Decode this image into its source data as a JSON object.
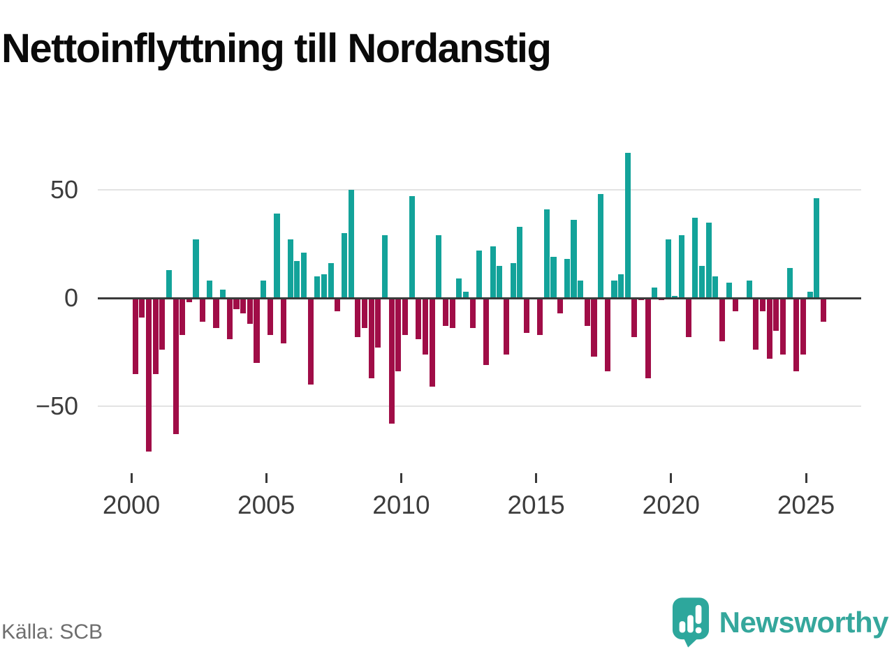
{
  "title": "Nettoinflyttning till Nordanstig",
  "source": "Källa: SCB",
  "brand": {
    "name": "Newsworthy",
    "color": "#35a79c"
  },
  "colors": {
    "positive": "#13a39a",
    "negative": "#a00d47",
    "axis": "#3a3a3a",
    "gridline": "#e3e3e3",
    "tick_text": "#3c3c3c",
    "source_text": "#6e6e6e",
    "title_text": "#0a0a0a",
    "background": "#ffffff"
  },
  "chart_data": {
    "type": "bar",
    "title": "Nettoinflyttning till Nordanstig",
    "frequency": "quarterly",
    "xlabel": "",
    "ylabel": "",
    "legend": "none",
    "grid": "horizontal gridlines at 50 and -50, dark zero axis",
    "ylim": [
      -75,
      72
    ],
    "y_ticks": [
      {
        "value": 50,
        "label": "50"
      },
      {
        "value": 0,
        "label": "0"
      },
      {
        "value": -50,
        "label": "−50"
      }
    ],
    "x_tick_years": [
      2000,
      2005,
      2010,
      2015,
      2020,
      2025
    ],
    "series_by_year": [
      {
        "year": 2000,
        "values": [
          -35,
          -9,
          -71,
          -35
        ]
      },
      {
        "year": 2001,
        "values": [
          -24,
          13,
          -63,
          -17
        ]
      },
      {
        "year": 2002,
        "values": [
          -2,
          27,
          -11,
          8
        ]
      },
      {
        "year": 2003,
        "values": [
          -14,
          4,
          -19,
          -5
        ]
      },
      {
        "year": 2004,
        "values": [
          -7,
          -12,
          -30,
          8
        ]
      },
      {
        "year": 2005,
        "values": [
          -17,
          39,
          -21,
          27
        ]
      },
      {
        "year": 2006,
        "values": [
          17,
          21,
          -40,
          10
        ]
      },
      {
        "year": 2007,
        "values": [
          11,
          16,
          -6,
          30
        ]
      },
      {
        "year": 2008,
        "values": [
          50,
          -18,
          -14,
          -37
        ]
      },
      {
        "year": 2009,
        "values": [
          -23,
          29,
          -58,
          -34
        ]
      },
      {
        "year": 2010,
        "values": [
          -17,
          47,
          -19,
          -26
        ]
      },
      {
        "year": 2011,
        "values": [
          -41,
          29,
          -13,
          -14
        ]
      },
      {
        "year": 2012,
        "values": [
          9,
          3,
          -14,
          22
        ]
      },
      {
        "year": 2013,
        "values": [
          -31,
          24,
          15,
          -26
        ]
      },
      {
        "year": 2014,
        "values": [
          16,
          33,
          -16,
          0
        ]
      },
      {
        "year": 2015,
        "values": [
          -17,
          41,
          19,
          -7
        ]
      },
      {
        "year": 2016,
        "values": [
          18,
          36,
          8,
          -13
        ]
      },
      {
        "year": 2017,
        "values": [
          -27,
          48,
          -34,
          8
        ]
      },
      {
        "year": 2018,
        "values": [
          11,
          67,
          -18,
          -1
        ]
      },
      {
        "year": 2019,
        "values": [
          -37,
          5,
          -1,
          27
        ]
      },
      {
        "year": 2020,
        "values": [
          1,
          29,
          -18,
          37
        ]
      },
      {
        "year": 2021,
        "values": [
          15,
          35,
          10,
          -20
        ]
      },
      {
        "year": 2022,
        "values": [
          7,
          -6,
          0,
          8
        ]
      },
      {
        "year": 2023,
        "values": [
          -24,
          -6,
          -28,
          -15
        ]
      },
      {
        "year": 2024,
        "values": [
          -26,
          14,
          -34,
          -26
        ]
      },
      {
        "year": 2025,
        "values": [
          3,
          46,
          -11
        ]
      }
    ]
  }
}
